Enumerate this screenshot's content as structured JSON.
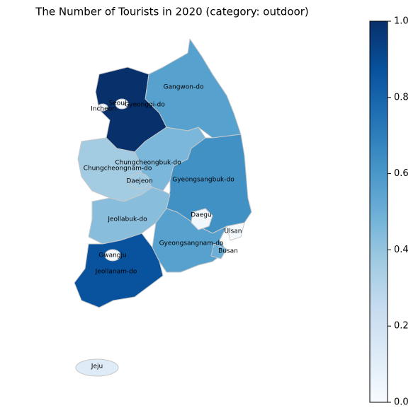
{
  "title": "The Number of Tourists in 2020 (category: outdoor)",
  "colormap": "Blues",
  "colorbar": {
    "lim": [
      0,
      1
    ],
    "ticks": [
      {
        "value": 0,
        "label": "0.0"
      },
      0.2,
      0.4,
      0.6,
      0.8,
      {
        "value": 1,
        "label": "1.0"
      }
    ]
  },
  "regions": [
    {
      "name": "Gyeonggi-do",
      "value": 1.0
    },
    {
      "name": "Gangwon-do",
      "value": 0.56
    },
    {
      "name": "Chungcheongbuk-do",
      "value": 0.46
    },
    {
      "name": "Chungcheongnam-do",
      "value": 0.36
    },
    {
      "name": "Gyeongsangbuk-do",
      "value": 0.63
    },
    {
      "name": "Jeollabuk-do",
      "value": 0.43
    },
    {
      "name": "Gyeongsangnam-do",
      "value": 0.56
    },
    {
      "name": "Jeollanam-do",
      "value": 0.87
    },
    {
      "name": "Jeju",
      "value": 0.12
    },
    {
      "name": "Seoul",
      "value": 0.02
    },
    {
      "name": "Incheon",
      "value": 0.03
    },
    {
      "name": "Daejeon",
      "value": 0.36
    },
    {
      "name": "Gwangju",
      "value": 0.02
    },
    {
      "name": "Daegu",
      "value": 0.04
    },
    {
      "name": "Ulsan",
      "value": 0.01
    },
    {
      "name": "Busan",
      "value": 0.5
    }
  ]
}
